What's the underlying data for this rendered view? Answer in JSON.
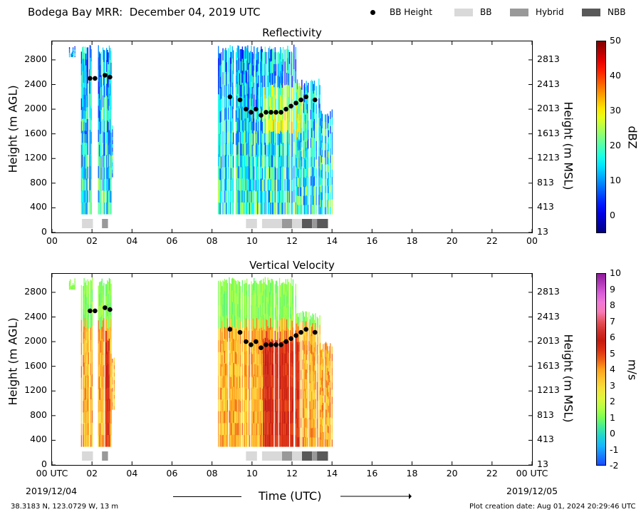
{
  "header": {
    "title": "Bodega Bay MRR:  December 04, 2019 UTC",
    "legend": [
      {
        "label": "BB Height",
        "kind": "marker",
        "color": "#000000"
      },
      {
        "label": "BB",
        "kind": "swatch",
        "color": "#d9d9d9"
      },
      {
        "label": "Hybrid",
        "kind": "swatch",
        "color": "#999999"
      },
      {
        "label": "NBB",
        "kind": "swatch",
        "color": "#595959"
      }
    ]
  },
  "chart_data": [
    {
      "type": "heatmap",
      "title": "Reflectivity",
      "ylabel": "Height (m AGL)",
      "ylabel_right": "Height (m MSL)",
      "colorbar_label": "dBZ",
      "colorbar_ticks": [
        "50",
        "40",
        "30",
        "20",
        "10",
        "0"
      ],
      "colorbar_range": [
        -5,
        50
      ],
      "ylim": [
        0,
        3100
      ],
      "yticks": [
        "2800",
        "2400",
        "2000",
        "1600",
        "1200",
        "800",
        "400",
        "0"
      ],
      "yticks_right": [
        "2813",
        "2413",
        "2013",
        "1613",
        "1213",
        "813",
        "413",
        "13"
      ],
      "xticks": [
        "00",
        "02",
        "04",
        "06",
        "08",
        "10",
        "12",
        "14",
        "16",
        "18",
        "20",
        "22",
        "00"
      ],
      "xlim": [
        0,
        24
      ]
    },
    {
      "type": "heatmap",
      "title": "Vertical Velocity",
      "ylabel": "Height (m AGL)",
      "ylabel_right": "Height (m MSL)",
      "colorbar_label": "m/s",
      "colorbar_ticks": [
        "10",
        "9",
        "8",
        "7",
        "6",
        "5",
        "4",
        "3",
        "2",
        "1",
        "0",
        "-1",
        "-2"
      ],
      "colorbar_range": [
        -2,
        10
      ],
      "ylim": [
        0,
        3100
      ],
      "yticks": [
        "2800",
        "2400",
        "2000",
        "1600",
        "1200",
        "800",
        "400",
        "0"
      ],
      "yticks_right": [
        "2813",
        "2413",
        "2013",
        "1613",
        "1213",
        "813",
        "413",
        "13"
      ],
      "xticks": [
        "00 UTC",
        "02",
        "04",
        "06",
        "08",
        "10",
        "12",
        "14",
        "16",
        "18",
        "20",
        "22",
        "00 UTC"
      ],
      "xlim": [
        0,
        24
      ]
    }
  ],
  "bright_band": {
    "heights_x": [
      1.9,
      2.15,
      2.65,
      2.9,
      8.9,
      9.4,
      9.7,
      9.95,
      10.2,
      10.45,
      10.7,
      10.95,
      11.2,
      11.45,
      11.7,
      11.95,
      12.2,
      12.45,
      12.7,
      13.15
    ],
    "heights_y": [
      2500,
      2500,
      2550,
      2520,
      2200,
      2150,
      2000,
      1950,
      2000,
      1900,
      1950,
      1950,
      1950,
      1950,
      2000,
      2050,
      2100,
      2150,
      2200,
      2150
    ],
    "classes": [
      {
        "start": 1.5,
        "end": 2.05,
        "type": "BB"
      },
      {
        "start": 2.5,
        "end": 2.8,
        "type": "Hybrid"
      },
      {
        "start": 9.7,
        "end": 10.25,
        "type": "BB"
      },
      {
        "start": 10.5,
        "end": 11.5,
        "type": "BB"
      },
      {
        "start": 11.5,
        "end": 12.0,
        "type": "Hybrid"
      },
      {
        "start": 12.0,
        "end": 12.5,
        "type": "BB"
      },
      {
        "start": 12.5,
        "end": 13.0,
        "type": "NBB"
      },
      {
        "start": 13.0,
        "end": 13.25,
        "type": "Hybrid"
      },
      {
        "start": 13.25,
        "end": 13.8,
        "type": "NBB"
      }
    ]
  },
  "footer": {
    "start_date": "2019/12/04",
    "end_date": "2019/12/05",
    "xlabel": "Time (UTC)",
    "location": "38.3183 N, 123.0729 W, 13 m",
    "creation": "Plot creation date: Aug 01, 2024 20:29:46 UTC"
  }
}
